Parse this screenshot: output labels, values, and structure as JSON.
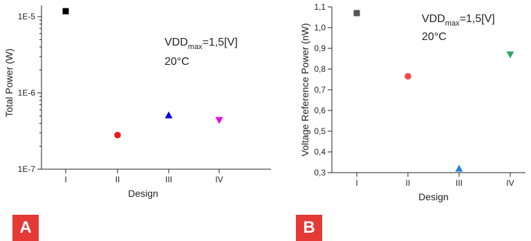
{
  "chart_data": [
    {
      "type": "scatter",
      "panel_label": "A",
      "xlabel": "Design",
      "ylabel": "Total Power (W)",
      "yscale": "log",
      "ylim": [
        1e-07,
        1.4e-05
      ],
      "yticks": [
        {
          "value": 1e-05,
          "label": "1E-5"
        },
        {
          "value": 1e-06,
          "label": "1E-6"
        },
        {
          "value": 1e-07,
          "label": "1E-7"
        }
      ],
      "categories": [
        "I",
        "II",
        "III",
        "IV"
      ],
      "annotation": {
        "line1_prefix": "VDD",
        "line1_sub": "max",
        "line1_suffix": "=1,5[V]",
        "line2": "20°C"
      },
      "points": [
        {
          "x": "I",
          "y": 1.18e-05,
          "marker": "square",
          "color": "#000000"
        },
        {
          "x": "II",
          "y": 2.8e-07,
          "marker": "circle",
          "color": "#ee1c1c"
        },
        {
          "x": "III",
          "y": 5.1e-07,
          "marker": "triangle-up",
          "color": "#0000ee"
        },
        {
          "x": "IV",
          "y": 4.4e-07,
          "marker": "triangle-down",
          "color": "#ee00ee"
        }
      ]
    },
    {
      "type": "scatter",
      "panel_label": "B",
      "xlabel": "Design",
      "ylabel": "Voltage Reference Power (nW)",
      "yscale": "linear",
      "ylim": [
        0.3,
        1.1
      ],
      "yticks": [
        {
          "value": 1.1,
          "label": "1,1"
        },
        {
          "value": 1.0,
          "label": "1,0"
        },
        {
          "value": 0.9,
          "label": "0,9"
        },
        {
          "value": 0.8,
          "label": "0,8"
        },
        {
          "value": 0.7,
          "label": "0,7"
        },
        {
          "value": 0.6,
          "label": "0,6"
        },
        {
          "value": 0.5,
          "label": "0,5"
        },
        {
          "value": 0.4,
          "label": "0,4"
        },
        {
          "value": 0.3,
          "label": "0,3"
        }
      ],
      "categories": [
        "I",
        "II",
        "III",
        "IV"
      ],
      "annotation": {
        "line1_prefix": "VDD",
        "line1_sub": "max",
        "line1_suffix": "=1,5[V]",
        "line2": "20°C"
      },
      "points": [
        {
          "x": "I",
          "y": 1.07,
          "marker": "square",
          "color": "#555555"
        },
        {
          "x": "II",
          "y": 0.765,
          "marker": "circle",
          "color": "#ef4a4a"
        },
        {
          "x": "III",
          "y": 0.32,
          "marker": "triangle-up",
          "color": "#2a7fe0"
        },
        {
          "x": "IV",
          "y": 0.87,
          "marker": "triangle-down",
          "color": "#2ea86a"
        }
      ]
    }
  ]
}
